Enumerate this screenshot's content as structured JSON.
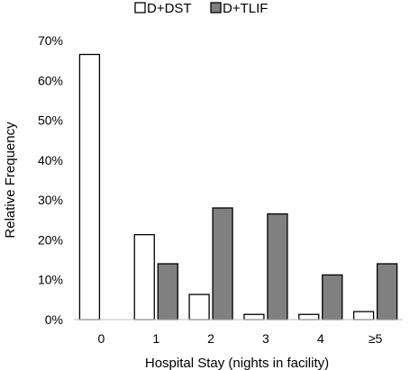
{
  "chart_data": {
    "type": "bar",
    "title": "",
    "xlabel": "Hospital Stay (nights in facility)",
    "ylabel": "Relative Frequency",
    "categories": [
      "0",
      "1",
      "2",
      "3",
      "4",
      "≥5"
    ],
    "series": [
      {
        "name": "D+DST",
        "values": [
          66.5,
          21.3,
          6.3,
          1.3,
          1.3,
          2.0
        ],
        "color": "#ffffff"
      },
      {
        "name": "D+TLIF",
        "values": [
          0,
          14.0,
          28.0,
          26.5,
          11.2,
          14.0
        ],
        "color": "#808080"
      }
    ],
    "ylim": [
      0,
      70
    ],
    "yticks": [
      0,
      10,
      20,
      30,
      40,
      50,
      60,
      70
    ],
    "ytick_format": "percent",
    "grid": false,
    "legend_position": "top-center"
  }
}
